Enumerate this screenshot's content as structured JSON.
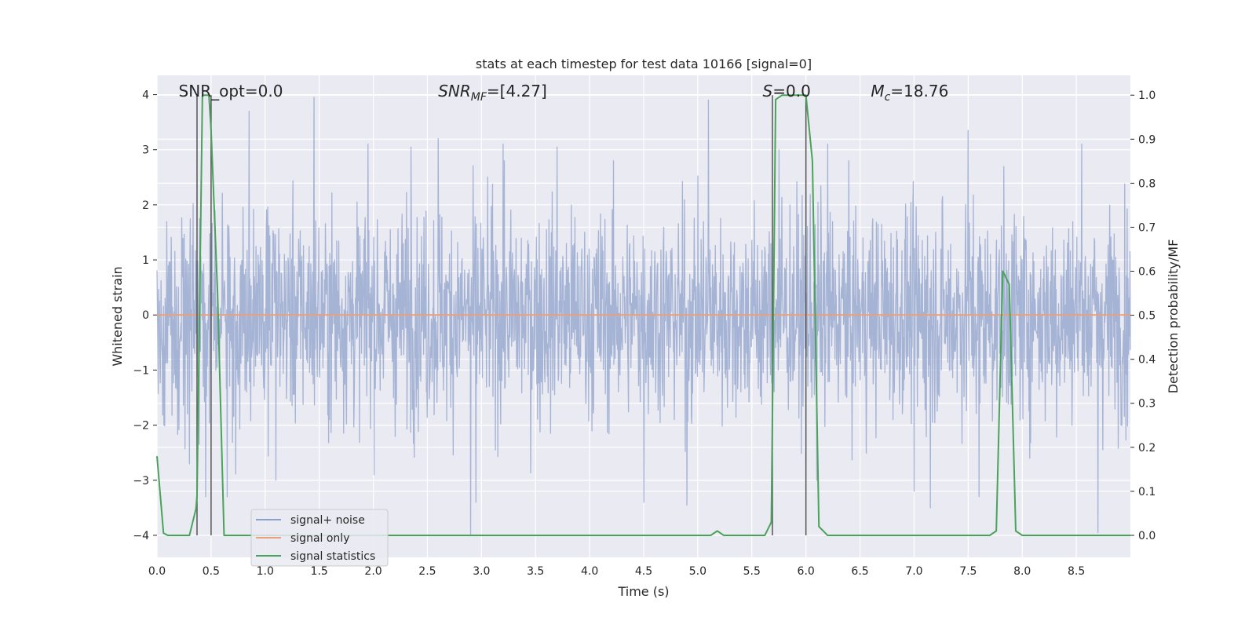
{
  "chart_data": {
    "type": "line",
    "title": "stats at each timestep for test data 10166 [signal=0]",
    "xlabel": "Time (s)",
    "ylabel": "Whitened strain",
    "ylabel_right": "Detection probability/MF",
    "xlim": [
      0.0,
      9.0
    ],
    "ylim": [
      -4.4,
      4.35
    ],
    "ylim_right": [
      -0.05,
      1.045
    ],
    "x_ticks": [
      "0.0",
      "0.5",
      "1.0",
      "1.5",
      "2.0",
      "2.5",
      "3.0",
      "3.5",
      "4.0",
      "4.5",
      "5.0",
      "5.5",
      "6.0",
      "6.5",
      "7.0",
      "7.5",
      "8.0",
      "8.5"
    ],
    "y_ticks": [
      "−4",
      "−3",
      "−2",
      "−1",
      "0",
      "1",
      "2",
      "3",
      "4"
    ],
    "y_ticks_right": [
      "0.0",
      "0.1",
      "0.2",
      "0.3",
      "0.4",
      "0.5",
      "0.6",
      "0.7",
      "0.8",
      "0.9",
      "1.0"
    ],
    "grid": true,
    "legend_position": "lower-left",
    "annotations": [
      {
        "text": "SNR_opt=0.0",
        "x": 0.2
      },
      {
        "text": "SNR_MF=[4.27]",
        "x": 2.6
      },
      {
        "text": "S=0.0",
        "x": 5.6
      },
      {
        "text": "M_c=18.76",
        "x": 6.6
      }
    ],
    "vertical_lines": [
      0.37,
      0.5,
      5.69,
      6.0
    ],
    "series": [
      {
        "name": "signal+ noise",
        "color": "#8da0cb",
        "axis": "left",
        "description": "whitened noisy strain, dense sampled, amplitude mostly within ±2.5, peaks up to 3.95 and down to -4.0",
        "peaks": [
          {
            "x": 0.45,
            "y": 2.4
          },
          {
            "x": 0.85,
            "y": 3.7
          },
          {
            "x": 1.45,
            "y": 3.95
          },
          {
            "x": 1.95,
            "y": 3.1
          },
          {
            "x": 2.35,
            "y": 3.05
          },
          {
            "x": 2.6,
            "y": 3.2
          },
          {
            "x": 3.2,
            "y": 3.1
          },
          {
            "x": 3.7,
            "y": 3.05
          },
          {
            "x": 5.1,
            "y": 3.9
          },
          {
            "x": 5.75,
            "y": 3.0
          },
          {
            "x": 6.2,
            "y": 3.1
          },
          {
            "x": 7.5,
            "y": 3.35
          },
          {
            "x": 8.55,
            "y": 3.1
          }
        ],
        "troughs": [
          {
            "x": 0.3,
            "y": -2.7
          },
          {
            "x": 0.45,
            "y": -3.3
          },
          {
            "x": 0.65,
            "y": -3.3
          },
          {
            "x": 1.1,
            "y": -3.0
          },
          {
            "x": 2.9,
            "y": -4.0
          },
          {
            "x": 2.95,
            "y": -3.4
          },
          {
            "x": 4.5,
            "y": -3.4
          },
          {
            "x": 4.9,
            "y": -3.45
          },
          {
            "x": 6.1,
            "y": -3.0
          },
          {
            "x": 7.0,
            "y": -3.2
          },
          {
            "x": 7.15,
            "y": -3.5
          },
          {
            "x": 7.6,
            "y": -3.3
          },
          {
            "x": 8.7,
            "y": -3.95
          }
        ]
      },
      {
        "name": "signal only",
        "color": "#e8a07d",
        "axis": "left",
        "x": [
          0.0,
          9.0
        ],
        "y": [
          0.0,
          0.0
        ]
      },
      {
        "name": "signal statistics",
        "color": "#4aa35a",
        "axis": "right",
        "x": [
          0.0,
          0.06,
          0.1,
          0.3,
          0.36,
          0.37,
          0.42,
          0.48,
          0.5,
          0.56,
          0.62,
          0.7,
          1.0,
          2.0,
          3.0,
          4.0,
          5.0,
          5.12,
          5.18,
          5.24,
          5.4,
          5.62,
          5.68,
          5.72,
          5.78,
          5.85,
          6.0,
          6.02,
          6.06,
          6.12,
          6.2,
          6.5,
          7.0,
          7.5,
          7.7,
          7.76,
          7.82,
          7.88,
          7.94,
          8.0,
          8.5,
          9.0
        ],
        "y": [
          0.18,
          0.005,
          0.0,
          0.0,
          0.06,
          0.09,
          1.0,
          1.0,
          0.92,
          0.55,
          0.0,
          0.0,
          0.0,
          0.0,
          0.0,
          0.0,
          0.0,
          0.0,
          0.01,
          0.0,
          0.0,
          0.0,
          0.03,
          0.99,
          1.0,
          1.0,
          1.0,
          0.95,
          0.85,
          0.02,
          0.0,
          0.0,
          0.0,
          0.0,
          0.0,
          0.01,
          0.6,
          0.57,
          0.01,
          0.0,
          0.0,
          0.0
        ]
      }
    ]
  }
}
